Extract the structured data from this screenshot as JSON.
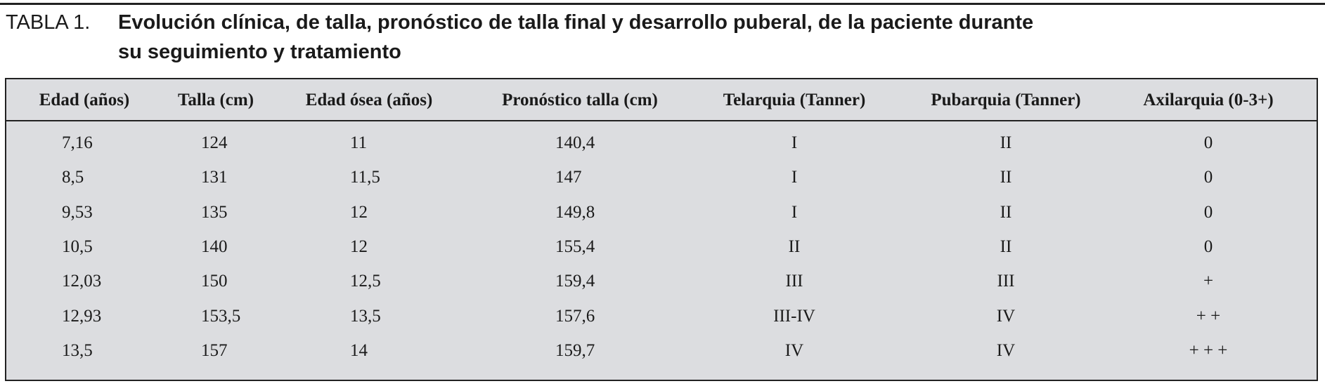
{
  "caption": {
    "label": "TABLA 1.",
    "title_line1": "Evolución clínica, de talla, pronóstico de talla final y desarrollo puberal, de la paciente durante",
    "title_line2": "su seguimiento y tratamiento"
  },
  "table": {
    "header": [
      "Edad (años)",
      "Talla (cm)",
      "Edad ósea (años)",
      "Pronóstico talla (cm)",
      "Telarquia (Tanner)",
      "Pubarquia (Tanner)",
      "Axilarquia (0-3+)"
    ],
    "rows": [
      [
        "7,16",
        "124",
        "11",
        "140,4",
        "I",
        "II",
        "0"
      ],
      [
        "8,5",
        "131",
        "11,5",
        "147",
        "I",
        "II",
        "0"
      ],
      [
        "9,53",
        "135",
        "12",
        "149,8",
        "I",
        "II",
        "0"
      ],
      [
        "10,5",
        "140",
        "12",
        "155,4",
        "II",
        "II",
        "0"
      ],
      [
        "12,03",
        "150",
        "12,5",
        "159,4",
        "III",
        "III",
        "+"
      ],
      [
        "12,93",
        "153,5",
        "13,5",
        "157,6",
        "III-IV",
        "IV",
        "+ +"
      ],
      [
        "13,5",
        "157",
        "14",
        "159,7",
        "IV",
        "IV",
        "+ + +"
      ]
    ]
  }
}
